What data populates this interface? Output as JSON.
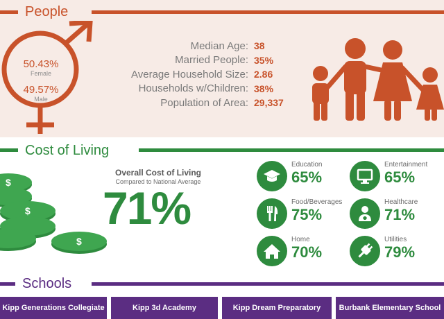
{
  "people": {
    "title": "People",
    "female_pct": "50.43%",
    "female_label": "Female",
    "male_pct": "49.57%",
    "male_label": "Male",
    "stats": [
      {
        "label": "Median Age:",
        "value": "38"
      },
      {
        "label": "Married People:",
        "value": "35%"
      },
      {
        "label": "Average Household Size:",
        "value": "2.86"
      },
      {
        "label": "Households w/Children:",
        "value": "38%"
      },
      {
        "label": "Population of Area:",
        "value": "29,337"
      }
    ]
  },
  "cost_of_living": {
    "title": "Cost of Living",
    "overall_title": "Overall Cost of Living",
    "overall_subtitle": "Compared to National Average",
    "overall_value": "71%",
    "categories": [
      {
        "label": "Education",
        "value": "65%",
        "icon": "graduation-cap-icon"
      },
      {
        "label": "Entertainment",
        "value": "65%",
        "icon": "monitor-icon"
      },
      {
        "label": "Food/Beverages",
        "value": "75%",
        "icon": "fork-knife-icon"
      },
      {
        "label": "Healthcare",
        "value": "71%",
        "icon": "doctor-icon"
      },
      {
        "label": "Home",
        "value": "70%",
        "icon": "house-icon"
      },
      {
        "label": "Utilities",
        "value": "79%",
        "icon": "plug-icon"
      }
    ]
  },
  "schools": {
    "title": "Schools",
    "items": [
      "Kipp Generations Collegiate",
      "Kipp 3d Academy",
      "Kipp Dream Preparatory",
      "Burbank Elementary School"
    ]
  },
  "colors": {
    "people": "#c8522a",
    "cost": "#2e8b3e",
    "schools": "#5b2d82"
  }
}
